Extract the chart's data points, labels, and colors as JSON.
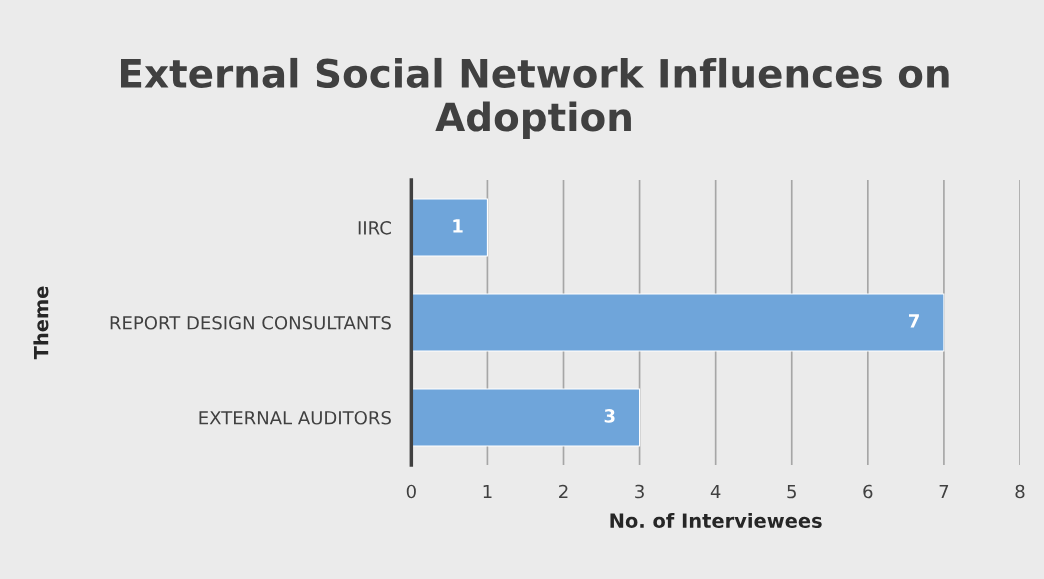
{
  "chart_data": {
    "type": "bar",
    "orientation": "horizontal",
    "title": "External Social Network Influences on Adoption",
    "xlabel": "No. of Interviewees",
    "ylabel": "Theme",
    "categories": [
      "IIRC",
      "REPORT DESIGN CONSULTANTS",
      "EXTERNAL AUDITORS"
    ],
    "values": [
      1,
      7,
      3
    ],
    "color": "#6fa5da",
    "xlim": [
      0,
      8
    ],
    "xticks": [
      0,
      1,
      2,
      3,
      4,
      5,
      6,
      7,
      8
    ],
    "grid": "x",
    "data_labels": true
  }
}
